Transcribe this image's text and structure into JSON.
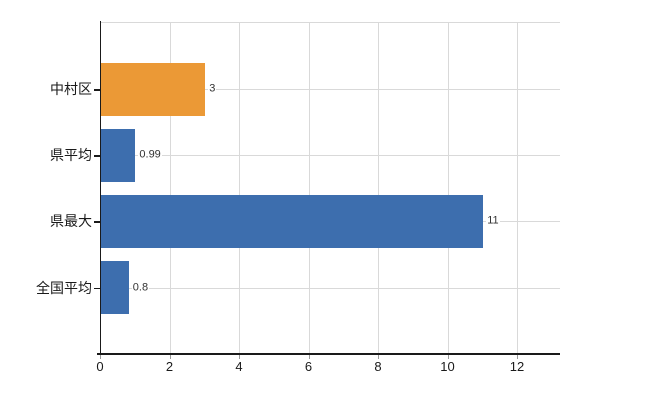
{
  "chart_data": {
    "type": "bar",
    "orientation": "horizontal",
    "title": "",
    "categories": [
      "中村区",
      "県平均",
      "県最大",
      "全国平均"
    ],
    "values": [
      3,
      0.99,
      11,
      0.8
    ],
    "value_labels": [
      "3",
      "0.99",
      "11",
      "0.8"
    ],
    "bar_colors": [
      "#EB9936",
      "#3D6EAE",
      "#3D6EAE",
      "#3D6EAE"
    ],
    "x_ticks": [
      0,
      2,
      4,
      6,
      8,
      10,
      12
    ],
    "x_tick_labels": [
      "0",
      "2",
      "4",
      "6",
      "8",
      "10",
      "12"
    ],
    "xlim": [
      0,
      13.25
    ],
    "xlabel": "",
    "ylabel": "",
    "grid": true,
    "legend": "none",
    "background_color": "#ffffff",
    "axis_color": "#1a1a1a",
    "grid_color": "#d9d9d9",
    "category_label_color": "#1a1a1a",
    "value_label_color": "#333333"
  }
}
